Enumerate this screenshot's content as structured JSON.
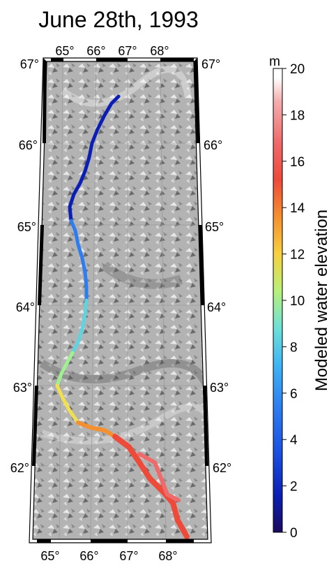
{
  "title": "June 28th, 1993",
  "map": {
    "top_lon_labels": [
      "65°",
      "66°",
      "67°",
      "68°"
    ],
    "bottom_lon_labels": [
      "65°",
      "66°",
      "67°",
      "68°"
    ],
    "left_lat_labels": [
      "67°",
      "66°",
      "65°",
      "64°",
      "63°",
      "62°"
    ],
    "right_lat_labels": [
      "67°",
      "66°",
      "65°",
      "64°",
      "63°",
      "62°"
    ],
    "background": "hillshade-relief",
    "river": "modeled-river-channel"
  },
  "colorbar": {
    "unit": "m",
    "label": "Modeled water elevation",
    "ticks": [
      "0",
      "2",
      "4",
      "6",
      "8",
      "10",
      "12",
      "14",
      "16",
      "18",
      "20"
    ],
    "min": 0,
    "max": 20,
    "colors": [
      "#1a0a5e",
      "#0b1fb4",
      "#1b4fe0",
      "#2d7df0",
      "#3fb4f4",
      "#6ee0d8",
      "#b8f07a",
      "#f7d040",
      "#f49030",
      "#ee4a3a",
      "#ef6a6a",
      "#f4aeae",
      "#ffffff"
    ]
  }
}
